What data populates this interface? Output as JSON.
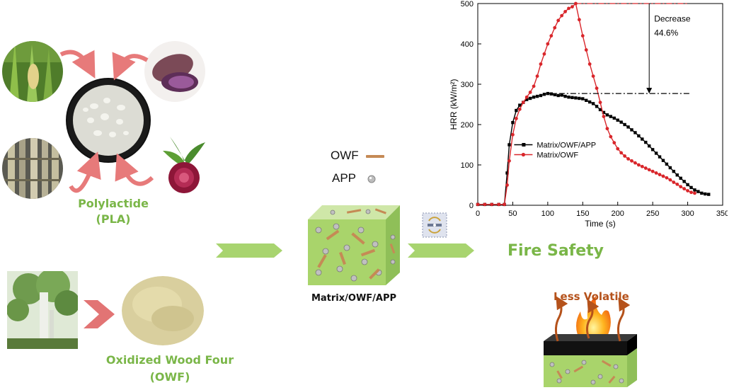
{
  "labels": {
    "pla_line1": "Polylactide",
    "pla_line2": "(PLA)",
    "owf_line1": "Oxidized Wood Four",
    "owf_line2": "(OWF)",
    "legend_owf": "OWF",
    "legend_app": "APP",
    "cube_label": "Matrix/OWF/APP",
    "fire_safety": "Fire Safety",
    "less_volatile": "Less Volatile"
  },
  "colors": {
    "accent_green": "#7ab648",
    "arrow_green": "#a8d46f",
    "red_series": "#d9262b",
    "black_series": "#000000",
    "pink_arrow": "#e77a7a",
    "volatile_brown": "#b5521b"
  },
  "chart_data": {
    "type": "line",
    "xlabel": "Time (s)",
    "ylabel": "HRR (kW/m²)",
    "xlim": [
      0,
      350
    ],
    "ylim": [
      0,
      500
    ],
    "xticks": [
      0,
      50,
      100,
      150,
      200,
      250,
      300,
      350
    ],
    "yticks": [
      0,
      100,
      200,
      300,
      400,
      500
    ],
    "legend_placement": "center-left",
    "annotation": {
      "line1": "Decrease",
      "line2": "44.6%"
    },
    "series": [
      {
        "name": "Matrix/OWF/APP",
        "color": "#000000",
        "marker": "square",
        "points": [
          [
            0,
            2
          ],
          [
            10,
            2
          ],
          [
            20,
            2
          ],
          [
            30,
            2
          ],
          [
            38,
            2
          ],
          [
            42,
            80
          ],
          [
            45,
            150
          ],
          [
            50,
            205
          ],
          [
            55,
            235
          ],
          [
            60,
            248
          ],
          [
            65,
            255
          ],
          [
            70,
            262
          ],
          [
            75,
            265
          ],
          [
            80,
            268
          ],
          [
            85,
            270
          ],
          [
            90,
            272
          ],
          [
            95,
            275
          ],
          [
            100,
            277
          ],
          [
            105,
            276
          ],
          [
            110,
            274
          ],
          [
            115,
            272
          ],
          [
            120,
            273
          ],
          [
            125,
            270
          ],
          [
            130,
            268
          ],
          [
            135,
            267
          ],
          [
            140,
            266
          ],
          [
            145,
            265
          ],
          [
            150,
            264
          ],
          [
            155,
            260
          ],
          [
            160,
            256
          ],
          [
            165,
            252
          ],
          [
            170,
            245
          ],
          [
            175,
            237
          ],
          [
            180,
            230
          ],
          [
            185,
            224
          ],
          [
            190,
            220
          ],
          [
            195,
            216
          ],
          [
            200,
            211
          ],
          [
            205,
            206
          ],
          [
            210,
            200
          ],
          [
            215,
            194
          ],
          [
            220,
            187
          ],
          [
            225,
            180
          ],
          [
            230,
            172
          ],
          [
            235,
            164
          ],
          [
            240,
            156
          ],
          [
            245,
            147
          ],
          [
            250,
            138
          ],
          [
            255,
            129
          ],
          [
            260,
            120
          ],
          [
            265,
            111
          ],
          [
            270,
            102
          ],
          [
            275,
            93
          ],
          [
            280,
            84
          ],
          [
            285,
            75
          ],
          [
            290,
            67
          ],
          [
            295,
            59
          ],
          [
            300,
            51
          ],
          [
            305,
            44
          ],
          [
            310,
            38
          ],
          [
            315,
            34
          ],
          [
            320,
            30
          ],
          [
            325,
            28
          ],
          [
            330,
            27
          ]
        ]
      },
      {
        "name": "Matrix/OWF",
        "color": "#d9262b",
        "marker": "circle",
        "points": [
          [
            0,
            2
          ],
          [
            10,
            2
          ],
          [
            20,
            2
          ],
          [
            30,
            2
          ],
          [
            38,
            2
          ],
          [
            42,
            50
          ],
          [
            45,
            110
          ],
          [
            50,
            175
          ],
          [
            55,
            215
          ],
          [
            60,
            238
          ],
          [
            65,
            255
          ],
          [
            70,
            268
          ],
          [
            75,
            280
          ],
          [
            80,
            295
          ],
          [
            85,
            320
          ],
          [
            90,
            350
          ],
          [
            95,
            375
          ],
          [
            100,
            400
          ],
          [
            105,
            420
          ],
          [
            110,
            440
          ],
          [
            115,
            458
          ],
          [
            120,
            470
          ],
          [
            125,
            480
          ],
          [
            130,
            488
          ],
          [
            135,
            492
          ],
          [
            140,
            500
          ],
          [
            145,
            460
          ],
          [
            150,
            420
          ],
          [
            155,
            385
          ],
          [
            160,
            350
          ],
          [
            165,
            320
          ],
          [
            170,
            290
          ],
          [
            175,
            255
          ],
          [
            180,
            220
          ],
          [
            185,
            190
          ],
          [
            190,
            170
          ],
          [
            195,
            155
          ],
          [
            200,
            140
          ],
          [
            205,
            130
          ],
          [
            210,
            122
          ],
          [
            215,
            115
          ],
          [
            220,
            110
          ],
          [
            225,
            105
          ],
          [
            230,
            100
          ],
          [
            235,
            96
          ],
          [
            240,
            92
          ],
          [
            245,
            88
          ],
          [
            250,
            84
          ],
          [
            255,
            80
          ],
          [
            260,
            76
          ],
          [
            265,
            72
          ],
          [
            270,
            68
          ],
          [
            275,
            63
          ],
          [
            280,
            57
          ],
          [
            285,
            52
          ],
          [
            290,
            46
          ],
          [
            295,
            41
          ],
          [
            300,
            36
          ],
          [
            305,
            32
          ],
          [
            310,
            30
          ]
        ]
      }
    ]
  }
}
